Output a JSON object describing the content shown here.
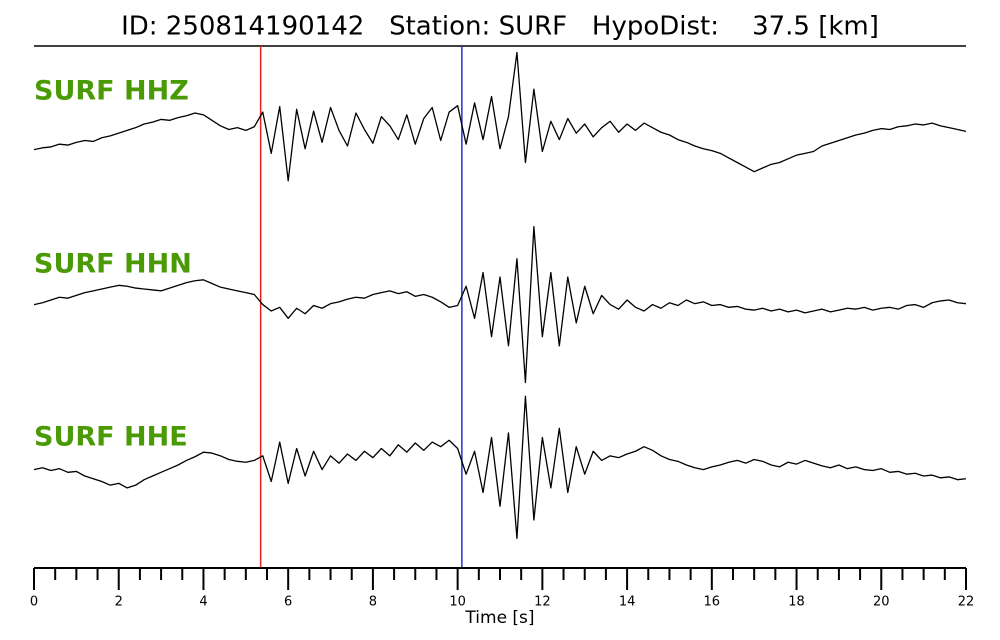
{
  "chart_data": {
    "type": "line",
    "title": "ID: 250814190142   Station: SURF   HypoDist:    37.5 [km]",
    "xlabel": "Time [s]",
    "xlim": [
      0,
      22
    ],
    "xticks": [
      0,
      2,
      4,
      6,
      8,
      10,
      12,
      14,
      16,
      18,
      20,
      22
    ],
    "xminorticks": [
      0.5,
      1,
      1.5,
      2.5,
      3,
      3.5,
      4.5,
      5,
      5.5,
      6.5,
      7,
      7.5,
      8.5,
      9,
      9.5,
      10.5,
      11,
      11.5,
      12.5,
      13,
      13.5,
      14.5,
      15,
      15.5,
      16.5,
      17,
      17.5,
      18.5,
      19,
      19.5,
      20.5,
      21,
      21.5
    ],
    "ylim": [
      -9,
      9
    ],
    "label_color": "#4a9a06",
    "picks": [
      {
        "x": 5.35,
        "color": "#e8221c"
      },
      {
        "x": 10.1,
        "color": "#2233cc"
      }
    ],
    "x": [
      0,
      0.2,
      0.4,
      0.6,
      0.8,
      1,
      1.2,
      1.4,
      1.6,
      1.8,
      2,
      2.2,
      2.4,
      2.6,
      2.8,
      3,
      3.2,
      3.4,
      3.6,
      3.8,
      4,
      4.2,
      4.4,
      4.6,
      4.8,
      5,
      5.2,
      5.4,
      5.6,
      5.8,
      6,
      6.2,
      6.4,
      6.6,
      6.8,
      7,
      7.2,
      7.4,
      7.6,
      7.8,
      8,
      8.2,
      8.4,
      8.6,
      8.8,
      9,
      9.2,
      9.4,
      9.6,
      9.8,
      10,
      10.2,
      10.4,
      10.6,
      10.8,
      11,
      11.2,
      11.4,
      11.6,
      11.8,
      12,
      12.2,
      12.4,
      12.6,
      12.8,
      13,
      13.2,
      13.4,
      13.6,
      13.8,
      14,
      14.2,
      14.4,
      14.6,
      14.8,
      15,
      15.2,
      15.4,
      15.6,
      15.8,
      16,
      16.2,
      16.4,
      16.6,
      16.8,
      17,
      17.2,
      17.4,
      17.6,
      17.8,
      18,
      18.2,
      18.4,
      18.6,
      18.8,
      19,
      19.2,
      19.4,
      19.6,
      19.8,
      20,
      20.2,
      20.4,
      20.6,
      20.8,
      21,
      21.2,
      21.4,
      21.6,
      21.8,
      22
    ],
    "series": [
      {
        "name": "SURF HHZ",
        "color": "#000000",
        "values": [
          -1.6,
          -1.4,
          -1.3,
          -1.0,
          -1.1,
          -0.8,
          -0.6,
          -0.7,
          -0.3,
          -0.1,
          0.2,
          0.5,
          0.8,
          1.2,
          1.4,
          1.7,
          1.6,
          1.9,
          2.1,
          2.4,
          2.2,
          1.6,
          1.0,
          0.6,
          0.8,
          0.5,
          0.9,
          2.5,
          -2.0,
          3.1,
          -5.0,
          2.8,
          -1.5,
          2.6,
          -0.8,
          3.0,
          0.5,
          -1.2,
          2.4,
          0.6,
          -0.9,
          2.0,
          1.0,
          -0.5,
          2.2,
          -1.0,
          1.8,
          3.0,
          -0.6,
          2.5,
          3.2,
          -1.0,
          3.5,
          -0.5,
          4.2,
          -1.5,
          2.0,
          9.0,
          -3.0,
          5.0,
          -1.8,
          1.5,
          -0.5,
          1.8,
          0.2,
          1.2,
          -0.2,
          0.8,
          1.5,
          0.3,
          1.2,
          0.5,
          1.3,
          0.8,
          0.3,
          0.0,
          -0.5,
          -0.8,
          -1.2,
          -1.5,
          -1.7,
          -2.0,
          -2.5,
          -3.0,
          -3.5,
          -4.0,
          -3.6,
          -3.2,
          -3.0,
          -2.6,
          -2.2,
          -2.0,
          -1.8,
          -1.2,
          -0.9,
          -0.6,
          -0.3,
          0.0,
          0.2,
          0.5,
          0.7,
          0.6,
          0.9,
          1.0,
          1.2,
          1.1,
          1.3,
          1.0,
          0.8,
          0.6,
          0.4
        ]
      },
      {
        "name": "SURF HHN",
        "color": "#000000",
        "values": [
          -0.5,
          -0.3,
          0.0,
          0.3,
          0.2,
          0.5,
          0.8,
          1.0,
          1.2,
          1.4,
          1.6,
          1.5,
          1.3,
          1.2,
          1.1,
          1.0,
          1.3,
          1.6,
          1.9,
          2.1,
          2.2,
          1.8,
          1.4,
          1.2,
          1.0,
          0.8,
          0.6,
          -0.5,
          -1.2,
          -0.8,
          -2.0,
          -0.9,
          -1.5,
          -0.6,
          -0.9,
          -0.4,
          -0.2,
          0.1,
          0.3,
          0.2,
          0.6,
          0.8,
          1.0,
          0.7,
          0.9,
          0.4,
          0.6,
          0.3,
          -0.2,
          -0.8,
          -0.6,
          1.5,
          -2.0,
          3.0,
          -4.0,
          2.5,
          -5.0,
          4.5,
          -9.0,
          8.0,
          -4.0,
          3.0,
          -5.0,
          2.5,
          -2.5,
          1.5,
          -1.5,
          0.5,
          -0.5,
          -1.0,
          0.0,
          -0.8,
          -1.2,
          -0.5,
          -0.9,
          -0.3,
          -0.6,
          0.0,
          -0.4,
          -0.2,
          -0.6,
          -0.5,
          -0.8,
          -0.7,
          -1.0,
          -1.1,
          -0.9,
          -1.2,
          -1.0,
          -1.3,
          -1.1,
          -1.4,
          -1.2,
          -1.0,
          -1.3,
          -1.1,
          -0.9,
          -1.0,
          -0.8,
          -1.1,
          -0.9,
          -0.8,
          -1.0,
          -0.6,
          -0.5,
          -0.8,
          -0.3,
          -0.1,
          0.0,
          -0.3,
          -0.4
        ]
      },
      {
        "name": "SURF HHE",
        "color": "#000000",
        "values": [
          -0.5,
          -0.3,
          -0.6,
          -0.4,
          -0.8,
          -0.7,
          -1.2,
          -1.5,
          -1.8,
          -2.2,
          -2.0,
          -2.5,
          -2.2,
          -1.6,
          -1.2,
          -0.8,
          -0.4,
          0.0,
          0.5,
          0.9,
          1.4,
          1.3,
          1.0,
          0.6,
          0.4,
          0.3,
          0.5,
          1.0,
          -1.8,
          2.5,
          -2.0,
          1.8,
          -1.2,
          1.5,
          -0.5,
          1.0,
          0.2,
          1.2,
          0.5,
          1.5,
          0.8,
          1.8,
          1.0,
          2.2,
          1.4,
          2.4,
          1.6,
          2.5,
          2.0,
          2.7,
          1.8,
          -1.0,
          1.5,
          -3.0,
          3.0,
          -4.5,
          3.5,
          -8.0,
          7.5,
          -6.0,
          3.0,
          -2.5,
          4.0,
          -3.0,
          2.0,
          -1.0,
          1.5,
          0.5,
          1.0,
          0.8,
          1.2,
          1.5,
          2.0,
          1.6,
          1.0,
          0.6,
          0.4,
          0.0,
          -0.3,
          -0.5,
          -0.2,
          0.0,
          0.3,
          0.5,
          0.2,
          0.6,
          0.4,
          0.0,
          -0.2,
          0.3,
          0.1,
          0.5,
          0.2,
          -0.1,
          -0.3,
          0.0,
          -0.4,
          -0.2,
          -0.5,
          -0.6,
          -0.4,
          -0.8,
          -0.7,
          -1.0,
          -0.9,
          -1.2,
          -1.1,
          -1.4,
          -1.3,
          -1.6,
          -1.5
        ]
      }
    ]
  }
}
